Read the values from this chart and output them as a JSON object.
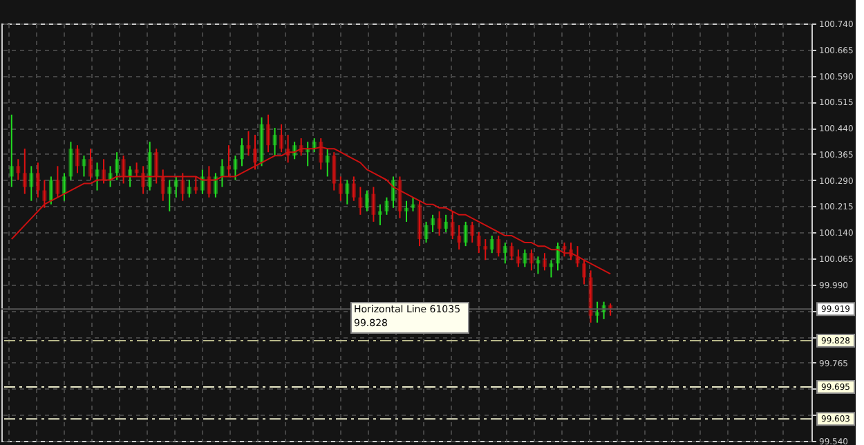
{
  "chart_data": {
    "type": "candlestick",
    "categories": [
      null,
      null,
      null,
      null,
      null,
      null,
      null,
      null,
      null,
      null,
      null,
      null,
      null,
      null,
      null,
      null,
      null,
      null,
      null,
      null,
      null,
      null,
      null,
      null,
      null,
      null,
      null,
      null,
      null,
      null,
      null,
      null,
      null,
      null,
      null,
      null,
      null,
      null,
      null,
      null,
      null,
      null,
      null,
      null,
      null,
      null,
      null,
      null,
      null,
      null,
      null,
      null,
      null,
      null,
      null,
      null,
      null,
      null,
      null,
      null,
      null,
      null,
      null,
      null,
      null,
      null,
      null,
      null,
      null,
      null,
      null,
      null,
      null,
      null,
      null,
      null,
      null,
      null,
      null,
      null,
      null,
      null,
      null,
      null,
      null,
      null,
      null,
      null,
      null,
      null,
      null,
      null
    ],
    "ohlc": [
      [
        100.3,
        100.478,
        100.27,
        100.33
      ],
      [
        100.33,
        100.35,
        100.29,
        100.31
      ],
      [
        100.31,
        100.38,
        100.25,
        100.27
      ],
      [
        100.27,
        100.33,
        100.23,
        100.31
      ],
      [
        100.31,
        100.34,
        100.24,
        100.26
      ],
      [
        100.26,
        100.29,
        100.21,
        100.23
      ],
      [
        100.23,
        100.3,
        100.22,
        100.29
      ],
      [
        100.29,
        100.33,
        100.24,
        100.25
      ],
      [
        100.25,
        100.31,
        100.23,
        100.3
      ],
      [
        100.3,
        100.4,
        100.29,
        100.38
      ],
      [
        100.38,
        100.39,
        100.31,
        100.33
      ],
      [
        100.33,
        100.36,
        100.3,
        100.35
      ],
      [
        100.35,
        100.38,
        100.29,
        100.3
      ],
      [
        100.3,
        100.34,
        100.26,
        100.32
      ],
      [
        100.32,
        100.35,
        100.28,
        100.29
      ],
      [
        100.29,
        100.33,
        100.27,
        100.31
      ],
      [
        100.31,
        100.37,
        100.29,
        100.35
      ],
      [
        100.35,
        100.36,
        100.28,
        100.3
      ],
      [
        100.3,
        100.33,
        100.27,
        100.32
      ],
      [
        100.32,
        100.34,
        100.3,
        100.31
      ],
      [
        100.31,
        100.33,
        100.25,
        100.27
      ],
      [
        100.27,
        100.4,
        100.26,
        100.37
      ],
      [
        100.37,
        100.38,
        100.28,
        100.3
      ],
      [
        100.3,
        100.32,
        100.23,
        100.25
      ],
      [
        100.25,
        100.29,
        100.2,
        100.27
      ],
      [
        100.27,
        100.3,
        100.24,
        100.29
      ],
      [
        100.29,
        100.31,
        100.23,
        100.25
      ],
      [
        100.25,
        100.29,
        100.24,
        100.27
      ],
      [
        100.27,
        100.3,
        100.25,
        100.26
      ],
      [
        100.26,
        100.32,
        100.25,
        100.3
      ],
      [
        100.3,
        100.33,
        100.24,
        100.25
      ],
      [
        100.25,
        100.31,
        100.24,
        100.3
      ],
      [
        100.3,
        100.35,
        100.27,
        100.33
      ],
      [
        100.33,
        100.39,
        100.3,
        100.32
      ],
      [
        100.32,
        100.36,
        100.29,
        100.35
      ],
      [
        100.35,
        100.41,
        100.33,
        100.39
      ],
      [
        100.39,
        100.43,
        100.36,
        100.38
      ],
      [
        100.38,
        100.42,
        100.32,
        100.34
      ],
      [
        100.34,
        100.47,
        100.33,
        100.45
      ],
      [
        100.45,
        100.478,
        100.37,
        100.39
      ],
      [
        100.39,
        100.44,
        100.36,
        100.42
      ],
      [
        100.42,
        100.45,
        100.37,
        100.38
      ],
      [
        100.38,
        100.42,
        100.34,
        100.36
      ],
      [
        100.36,
        100.4,
        100.35,
        100.39
      ],
      [
        100.39,
        100.41,
        100.36,
        100.37
      ],
      [
        100.37,
        100.4,
        100.33,
        100.38
      ],
      [
        100.38,
        100.41,
        100.37,
        100.4
      ],
      [
        100.4,
        100.41,
        100.32,
        100.34
      ],
      [
        100.34,
        100.38,
        100.3,
        100.36
      ],
      [
        100.36,
        100.37,
        100.26,
        100.28
      ],
      [
        100.28,
        100.3,
        100.23,
        100.25
      ],
      [
        100.25,
        100.29,
        100.22,
        100.28
      ],
      [
        100.28,
        100.3,
        100.23,
        100.24
      ],
      [
        100.24,
        100.27,
        100.19,
        100.21
      ],
      [
        100.21,
        100.26,
        100.2,
        100.25
      ],
      [
        100.25,
        100.27,
        100.17,
        100.19
      ],
      [
        100.19,
        100.22,
        100.16,
        100.2
      ],
      [
        100.2,
        100.24,
        100.19,
        100.23
      ],
      [
        100.23,
        100.3,
        100.21,
        100.29
      ],
      [
        100.29,
        100.3,
        100.18,
        100.2
      ],
      [
        100.2,
        100.23,
        100.17,
        100.21
      ],
      [
        100.21,
        100.24,
        100.2,
        100.22
      ],
      [
        100.22,
        100.23,
        100.1,
        100.12
      ],
      [
        100.12,
        100.17,
        100.11,
        100.16
      ],
      [
        100.16,
        100.19,
        100.14,
        100.18
      ],
      [
        100.18,
        100.2,
        100.13,
        100.15
      ],
      [
        100.15,
        100.19,
        100.14,
        100.17
      ],
      [
        100.17,
        100.2,
        100.12,
        100.13
      ],
      [
        100.13,
        100.16,
        100.09,
        100.11
      ],
      [
        100.11,
        100.17,
        100.1,
        100.16
      ],
      [
        100.16,
        100.17,
        100.11,
        100.13
      ],
      [
        100.13,
        100.14,
        100.08,
        100.1
      ],
      [
        100.1,
        100.12,
        100.06,
        100.09
      ],
      [
        100.09,
        100.13,
        100.08,
        100.12
      ],
      [
        100.12,
        100.13,
        100.07,
        100.08
      ],
      [
        100.08,
        100.11,
        100.05,
        100.1
      ],
      [
        100.1,
        100.11,
        100.06,
        100.07
      ],
      [
        100.07,
        100.09,
        100.04,
        100.05
      ],
      [
        100.05,
        100.09,
        100.04,
        100.08
      ],
      [
        100.08,
        100.09,
        100.03,
        100.05
      ],
      [
        100.05,
        100.07,
        100.02,
        100.06
      ],
      [
        100.06,
        100.08,
        100.03,
        100.04
      ],
      [
        100.04,
        100.06,
        100.01,
        100.05
      ],
      [
        100.05,
        100.11,
        100.03,
        100.1
      ],
      [
        100.1,
        100.11,
        100.07,
        100.09
      ],
      [
        100.09,
        100.11,
        100.06,
        100.07
      ],
      [
        100.07,
        100.1,
        100.04,
        100.05
      ],
      [
        100.05,
        100.06,
        99.99,
        100.01
      ],
      [
        100.01,
        100.03,
        99.88,
        99.9
      ],
      [
        99.9,
        99.94,
        99.88,
        99.91
      ],
      [
        99.91,
        99.94,
        99.89,
        99.93
      ],
      [
        99.93,
        99.935,
        99.9,
        99.919
      ]
    ],
    "colors": [
      "#22dd22",
      "#dd1111",
      "#dd1111",
      "#22dd22",
      "#dd1111",
      "#dd1111",
      "#22dd22",
      "#dd1111",
      "#22dd22",
      "#22dd22",
      "#dd1111",
      "#22dd22",
      "#dd1111",
      "#22dd22",
      "#dd1111",
      "#22dd22",
      "#22dd22",
      "#dd1111",
      "#22dd22",
      "#dd1111",
      "#dd1111",
      "#22dd22",
      "#dd1111",
      "#dd1111",
      "#22dd22",
      "#22dd22",
      "#dd1111",
      "#22dd22",
      "#dd1111",
      "#22dd22",
      "#dd1111",
      "#22dd22",
      "#22dd22",
      "#dd1111",
      "#22dd22",
      "#22dd22",
      "#dd1111",
      "#dd1111",
      "#22dd22",
      "#dd1111",
      "#22dd22",
      "#dd1111",
      "#dd1111",
      "#22dd22",
      "#dd1111",
      "#22dd22",
      "#22dd22",
      "#dd1111",
      "#22dd22",
      "#dd1111",
      "#dd1111",
      "#22dd22",
      "#dd1111",
      "#dd1111",
      "#22dd22",
      "#dd1111",
      "#22dd22",
      "#22dd22",
      "#22dd22",
      "#dd1111",
      "#22dd22",
      "#22dd22",
      "#dd1111",
      "#22dd22",
      "#22dd22",
      "#dd1111",
      "#22dd22",
      "#dd1111",
      "#dd1111",
      "#22dd22",
      "#dd1111",
      "#dd1111",
      "#dd1111",
      "#22dd22",
      "#dd1111",
      "#22dd22",
      "#dd1111",
      "#dd1111",
      "#22dd22",
      "#dd1111",
      "#22dd22",
      "#dd1111",
      "#22dd22",
      "#22dd22",
      "#dd1111",
      "#dd1111",
      "#dd1111",
      "#dd1111",
      "#dd1111",
      "#22dd22",
      "#22dd22",
      "#dd1111"
    ],
    "series": [
      {
        "type": "line",
        "color": "#cc1111",
        "values": [
          100.12,
          100.14,
          100.16,
          100.18,
          100.2,
          100.22,
          100.23,
          100.24,
          100.25,
          100.26,
          100.27,
          100.28,
          100.28,
          100.29,
          100.29,
          100.29,
          100.3,
          100.3,
          100.3,
          100.3,
          100.3,
          100.3,
          100.3,
          100.3,
          100.3,
          100.3,
          100.3,
          100.3,
          100.3,
          100.29,
          100.29,
          100.29,
          100.3,
          100.3,
          100.3,
          100.31,
          100.32,
          100.33,
          100.34,
          100.35,
          100.36,
          100.36,
          100.37,
          100.37,
          100.38,
          100.38,
          100.38,
          100.385,
          100.38,
          100.38,
          100.37,
          100.36,
          100.35,
          100.34,
          100.32,
          100.31,
          100.3,
          100.29,
          100.27,
          100.26,
          100.25,
          100.24,
          100.23,
          100.22,
          100.22,
          100.21,
          100.21,
          100.2,
          100.19,
          100.19,
          100.18,
          100.17,
          100.16,
          100.15,
          100.14,
          100.13,
          100.13,
          100.12,
          100.11,
          100.11,
          100.1,
          100.1,
          100.09,
          100.09,
          100.08,
          100.08,
          100.07,
          100.06,
          100.05,
          100.04,
          100.03,
          100.02
        ]
      }
    ],
    "ylim": [
      99.54,
      100.74
    ],
    "yticks": [
      {
        "value": 99.54,
        "label": "99.540"
      },
      {
        "value": 99.615,
        "label": null
      },
      {
        "value": 99.69,
        "label": null
      },
      99.765,
      {
        "value": 99.84,
        "label": null
      },
      {
        "value": 99.915,
        "label": null
      },
      {
        "value": 99.99,
        "label": "99.990"
      },
      100.065,
      {
        "value": 100.14,
        "label": "100.140"
      },
      100.215,
      {
        "value": 100.29,
        "label": "100.290"
      },
      100.365,
      {
        "value": 100.44,
        "label": "100.440"
      },
      100.515,
      {
        "value": 100.59,
        "label": "100.590"
      },
      100.665,
      {
        "value": 100.74,
        "label": "100.740"
      }
    ],
    "ref_lines": [
      {
        "axis": "y",
        "value": 99.919,
        "label": "99.919",
        "color": "#555555",
        "line_style": "solid"
      },
      {
        "axis": "y",
        "value": 99.828,
        "label": "99.828",
        "color": "#b8b88a",
        "line_style": "dashdot"
      },
      {
        "axis": "y",
        "value": 99.695,
        "label": "99.695",
        "color": "#e8e8c8",
        "line_style": "dashdot"
      },
      {
        "axis": "y",
        "value": 99.603,
        "label": "99.603",
        "color": "#e8e8c8",
        "line_style": "dashdot"
      }
    ],
    "annotations": [
      "Horizontal Line 61035",
      "99.828"
    ],
    "grid": true,
    "tick_labels": "y"
  }
}
